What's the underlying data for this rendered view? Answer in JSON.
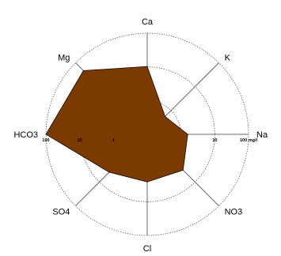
{
  "chart_data": {
    "type": "radar",
    "title": "",
    "axes": [
      "Ca",
      "K",
      "Na",
      "NO3",
      "Cl",
      "SO4",
      "HCO3",
      "Mg"
    ],
    "r_max": 100,
    "rings": [
      33.3,
      66.7,
      100
    ],
    "tick_labels": {
      "left": [
        "100",
        "10",
        "1"
      ],
      "right": [
        "10",
        "100 mg/l"
      ]
    },
    "series": [
      {
        "values": [
          67,
          25,
          40,
          50,
          47,
          53,
          100,
          89
        ],
        "fill": "#7a3a00",
        "stroke": "#1a0a00"
      }
    ],
    "grid": true,
    "legend": "none"
  }
}
